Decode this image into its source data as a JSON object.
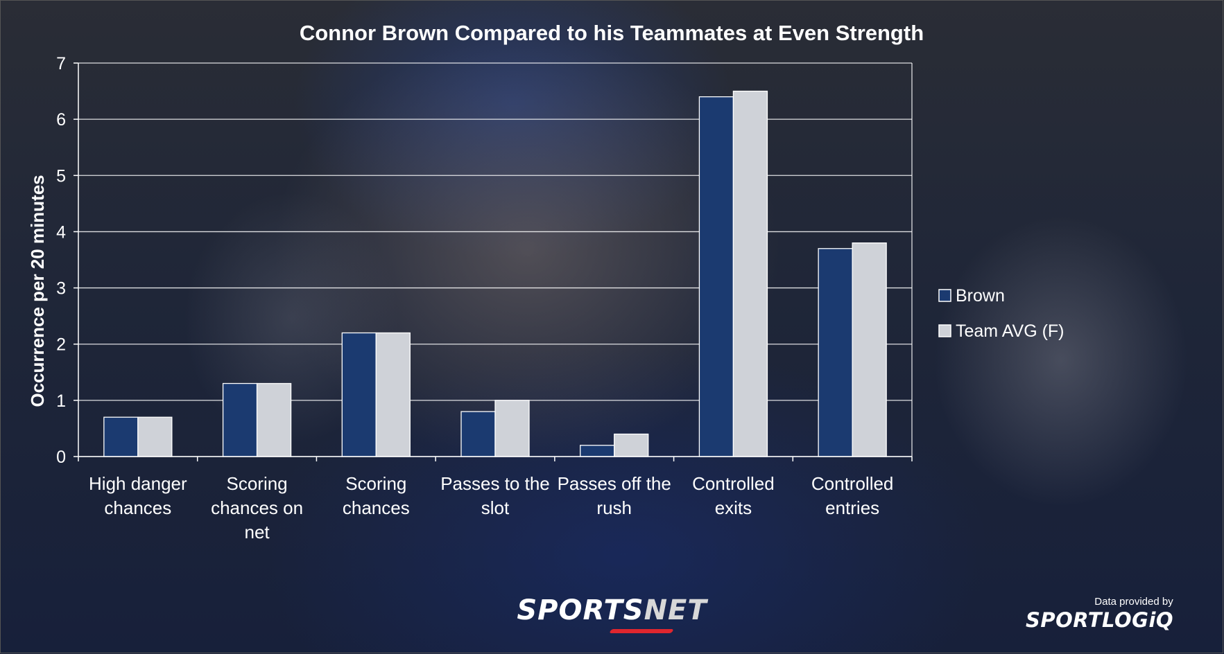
{
  "chart_data": {
    "type": "bar",
    "title": "Connor Brown Compared to his Teammates at Even Strength",
    "ylabel": "Occurrence per 20 minutes",
    "xlabel": "",
    "ylim": [
      0,
      7
    ],
    "yticks": [
      0,
      1,
      2,
      3,
      4,
      5,
      6,
      7
    ],
    "grid": true,
    "legend_position": "right",
    "categories": [
      [
        "High danger",
        "chances"
      ],
      [
        "Scoring",
        "chances on",
        "net"
      ],
      [
        "Scoring",
        "chances"
      ],
      [
        "Passes to the",
        "slot"
      ],
      [
        "Passes off the",
        "rush"
      ],
      [
        "Controlled",
        "exits"
      ],
      [
        "Controlled",
        "entries"
      ]
    ],
    "series": [
      {
        "name": "Brown",
        "color": "#1b3a70",
        "values": [
          0.7,
          1.3,
          2.2,
          0.8,
          0.2,
          6.4,
          3.7
        ]
      },
      {
        "name": "Team AVG (F)",
        "color": "#cfd2d8",
        "values": [
          0.7,
          1.3,
          2.2,
          1.0,
          0.4,
          6.5,
          3.8
        ]
      }
    ]
  },
  "branding": {
    "sportsnet_a": "SPORTS",
    "sportsnet_b": "NET",
    "provided_by": "Data provided by",
    "sportlogiq": "SPORTLOGiQ"
  }
}
